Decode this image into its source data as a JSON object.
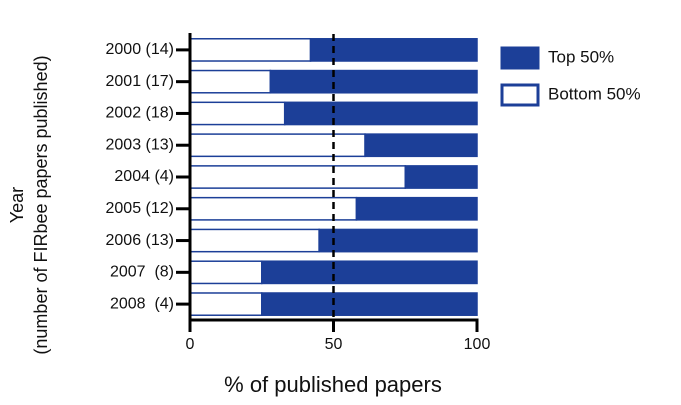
{
  "chart_data": {
    "type": "stacked-bar-horizontal",
    "y_label_lines": [
      "Year",
      "(number of FIRbee papers published)"
    ],
    "x_label": "% of published papers",
    "categories": [
      "2000 (14)",
      "2001 (17)",
      "2002 (18)",
      "2003 (13)",
      "2004 (4)",
      "2005 (12)",
      "2006 (13)",
      "2007  (8)",
      "2008  (4)"
    ],
    "series": [
      {
        "name": "Top 50%",
        "color": "#1c3f98",
        "values": [
          58,
          72,
          67,
          39,
          25,
          42,
          55,
          75,
          75
        ]
      },
      {
        "name": "Bottom 50%",
        "color": "#ffffff",
        "values": [
          42,
          28,
          33,
          61,
          75,
          58,
          45,
          25,
          25
        ]
      }
    ],
    "xlim": [
      0,
      100
    ],
    "xticks": [
      0,
      50,
      100
    ],
    "reference_line": 50,
    "legend": "right"
  }
}
